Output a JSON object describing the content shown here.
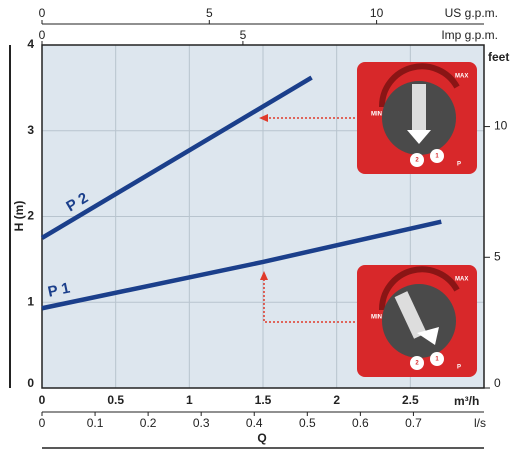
{
  "chart_data": {
    "type": "line",
    "xlabel": "m³/h",
    "ylabel": "H (m)",
    "qlabel": "Q",
    "xlim": [
      0,
      3
    ],
    "xticks": [
      0,
      0.5,
      1,
      1.5,
      2,
      2.5
    ],
    "ylim": [
      0,
      4
    ],
    "yticks": [
      0,
      1,
      2,
      3,
      4
    ],
    "y2label": "feet",
    "y2lim": [
      0,
      13.12
    ],
    "y2ticks": [
      0,
      5,
      10
    ],
    "us_gpm": {
      "label": "US g.p.m.",
      "lim": [
        0,
        13.21
      ],
      "ticks": [
        0,
        5,
        10
      ]
    },
    "imp_gpm": {
      "label": "Imp g.p.m.",
      "lim": [
        0,
        11.0
      ],
      "ticks": [
        0,
        5
      ]
    },
    "ls": {
      "label": "l/s",
      "lim": [
        0,
        0.833
      ],
      "ticks": [
        0,
        0.1,
        0.2,
        0.3,
        0.4,
        0.5,
        0.6,
        0.7
      ]
    },
    "grid": true,
    "series": [
      {
        "name": "P 1",
        "color": "#1b3f8b",
        "x": [
          0,
          1.5,
          2.71
        ],
        "values": [
          0.93,
          1.47,
          1.94
        ]
      },
      {
        "name": "P 2",
        "color": "#1b3f8b",
        "x": [
          0,
          1.83
        ],
        "values": [
          1.75,
          3.62
        ]
      }
    ],
    "dial_labels": [
      "MAX",
      "MIN",
      "2",
      "1",
      "P"
    ]
  }
}
